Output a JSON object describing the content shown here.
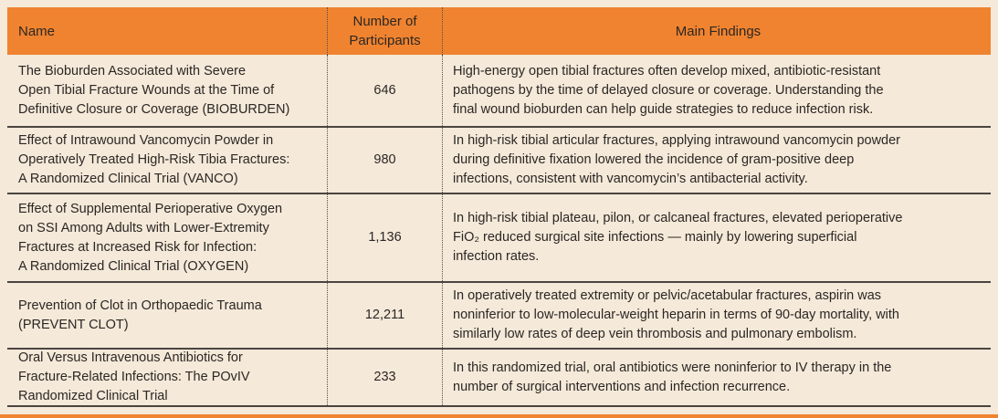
{
  "colors": {
    "accent_orange": "#F0832F",
    "background_cream": "#F5E9D9",
    "text_dark": "#2B2724",
    "separator_line": "#4A4540",
    "dotted_line": "#55504B"
  },
  "table": {
    "columns": [
      {
        "label": "Name"
      },
      {
        "label": "Number of\nParticipants"
      },
      {
        "label": "Main Findings"
      }
    ],
    "rows": [
      {
        "name": "The Bioburden Associated with Severe\nOpen Tibial Fracture Wounds at the Time of\nDefinitive Closure or Coverage (BIOBURDEN)",
        "participants": "646",
        "findings": "High-energy open tibial fractures often develop mixed, antibiotic-resistant\npathogens by the time of delayed closure or coverage. Understanding the\nfinal wound bioburden can help guide strategies to reduce infection risk."
      },
      {
        "name": "Effect of Intrawound Vancomycin Powder in\nOperatively Treated High-Risk Tibia Fractures:\nA Randomized Clinical Trial (VANCO)",
        "participants": "980",
        "findings": "In high-risk tibial articular fractures, applying intrawound vancomycin powder\nduring definitive fixation lowered the incidence of gram-positive deep\ninfections, consistent with vancomycin’s antibacterial activity."
      },
      {
        "name": "Effect of Supplemental Perioperative Oxygen\non SSI Among Adults with Lower-Extremity\nFractures at Increased Risk for Infection:\nA Randomized Clinical Trial (OXYGEN)",
        "participants": "1,136",
        "findings": "In high-risk tibial plateau, pilon, or calcaneal fractures, elevated perioperative\nFiO₂ reduced surgical site infections — mainly by lowering superficial\ninfection rates."
      },
      {
        "name": "Prevention of Clot in Orthopaedic Trauma\n(PREVENT CLOT)",
        "participants": "12,211",
        "findings": "In operatively treated extremity or pelvic/acetabular fractures, aspirin was\nnoninferior to low-molecular-weight heparin in terms of 90-day mortality, with\nsimilarly low rates of deep vein thrombosis and pulmonary embolism."
      },
      {
        "name": "Oral Versus Intravenous Antibiotics for\nFracture-Related Infections: The POvIV\nRandomized Clinical Trial",
        "participants": "233",
        "findings": "In this randomized trial, oral antibiotics were noninferior to IV therapy in the\nnumber of surgical interventions and infection recurrence."
      }
    ]
  }
}
